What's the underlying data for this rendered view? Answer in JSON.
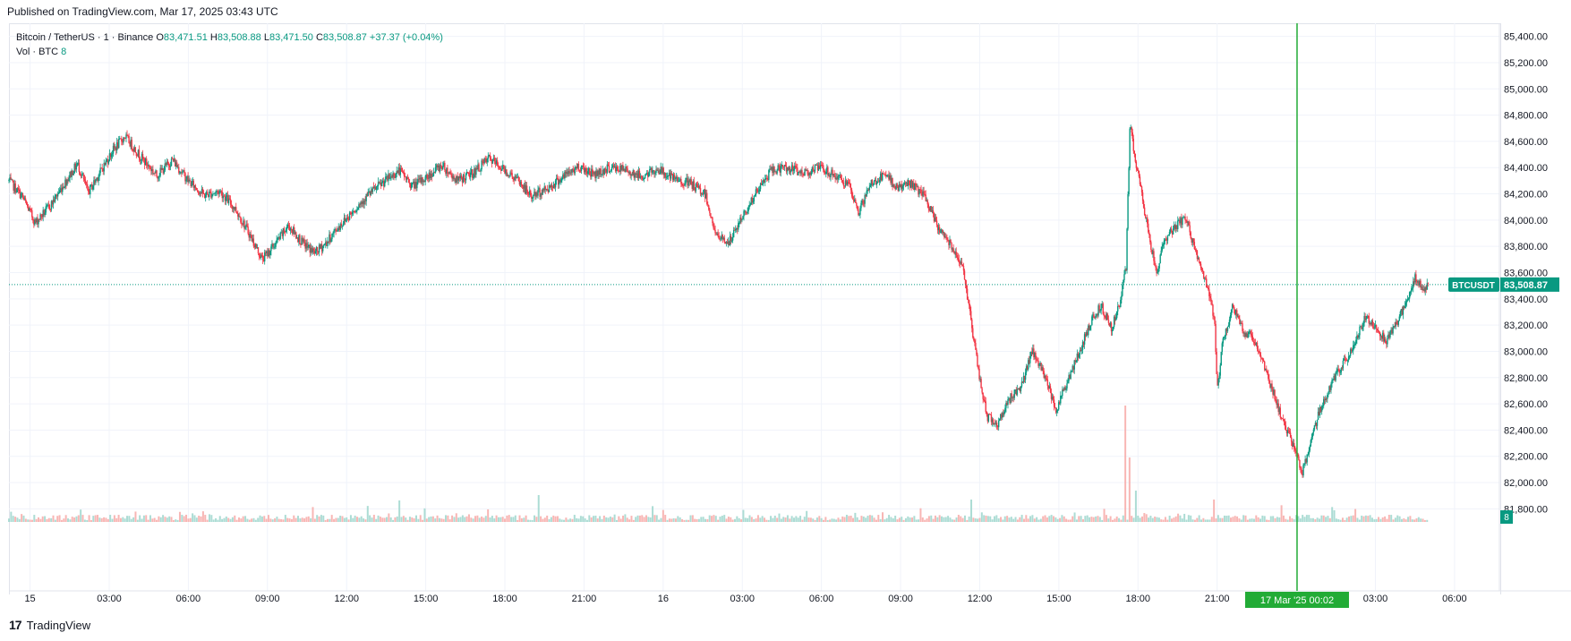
{
  "published": "Published on TradingView.com, Mar 17, 2025 03:43 UTC",
  "legend": {
    "symbol": "Bitcoin / TetherUS · 1 · Binance",
    "o_label": "O",
    "o": "83,471.51",
    "h_label": "H",
    "h": "83,508.88",
    "l_label": "L",
    "l": "83,471.50",
    "c_label": "C",
    "c": "83,508.87",
    "change": "+37.37 (+0.04%)",
    "vol_label": "Vol · BTC",
    "vol_value": "8"
  },
  "footer": {
    "brand": "TradingView",
    "mark": "17"
  },
  "colors": {
    "up": "#089981",
    "down": "#f23645",
    "cursor": "#22ab36",
    "grid": "#f0f3fa"
  },
  "chart_data": {
    "type": "line",
    "symbol": "BTCUSDT",
    "last_price": 83508.87,
    "last_price_label": "83,508.87",
    "symbol_label": "BTCUSDT",
    "volume_label": "8",
    "cursor_label": "17 Mar '25   00:02",
    "yticks": [
      81800,
      82000,
      82200,
      82400,
      82600,
      82800,
      83000,
      83200,
      83400,
      83600,
      83800,
      84000,
      84200,
      84400,
      84600,
      84800,
      85000,
      85200,
      85400
    ],
    "ytick_labels": [
      "81,800.00",
      "82,000.00",
      "82,200.00",
      "82,400.00",
      "82,600.00",
      "82,800.00",
      "83,000.00",
      "83,200.00",
      "83,400.00",
      "83,600.00",
      "83,800.00",
      "84,000.00",
      "84,200.00",
      "84,400.00",
      "84,600.00",
      "84,800.00",
      "85,000.00",
      "85,200.00",
      "85,400.00"
    ],
    "ylim": [
      81700,
      85500
    ],
    "xticks": [
      {
        "label": "15",
        "hours": 0
      },
      {
        "label": "03:00",
        "hours": 3
      },
      {
        "label": "06:00",
        "hours": 6
      },
      {
        "label": "09:00",
        "hours": 9
      },
      {
        "label": "12:00",
        "hours": 12
      },
      {
        "label": "15:00",
        "hours": 15
      },
      {
        "label": "18:00",
        "hours": 18
      },
      {
        "label": "21:00",
        "hours": 21
      },
      {
        "label": "16",
        "hours": 24
      },
      {
        "label": "03:00",
        "hours": 27
      },
      {
        "label": "06:00",
        "hours": 30
      },
      {
        "label": "09:00",
        "hours": 33
      },
      {
        "label": "12:00",
        "hours": 36
      },
      {
        "label": "15:00",
        "hours": 39
      },
      {
        "label": "18:00",
        "hours": 42
      },
      {
        "label": "21:00",
        "hours": 45
      },
      {
        "label": "03:00",
        "hours": 51
      },
      {
        "label": "06:00",
        "hours": 54
      }
    ],
    "xlim_hours": [
      -0.8,
      55.7
    ],
    "cursor_hours": 48.03,
    "price_series": [
      [
        -0.8,
        84300
      ],
      [
        -0.3,
        84180
      ],
      [
        0.2,
        83980
      ],
      [
        0.8,
        84120
      ],
      [
        1.3,
        84280
      ],
      [
        1.8,
        84430
      ],
      [
        2.2,
        84210
      ],
      [
        2.7,
        84380
      ],
      [
        3.1,
        84520
      ],
      [
        3.6,
        84640
      ],
      [
        4.2,
        84480
      ],
      [
        4.8,
        84340
      ],
      [
        5.4,
        84460
      ],
      [
        6.0,
        84300
      ],
      [
        6.6,
        84190
      ],
      [
        7.2,
        84220
      ],
      [
        7.8,
        84080
      ],
      [
        8.3,
        83900
      ],
      [
        8.8,
        83700
      ],
      [
        9.3,
        83820
      ],
      [
        9.8,
        83960
      ],
      [
        10.3,
        83830
      ],
      [
        10.8,
        83750
      ],
      [
        11.2,
        83820
      ],
      [
        11.7,
        83950
      ],
      [
        12.2,
        84060
      ],
      [
        12.8,
        84190
      ],
      [
        13.4,
        84290
      ],
      [
        14.0,
        84380
      ],
      [
        14.5,
        84260
      ],
      [
        15.0,
        84320
      ],
      [
        15.6,
        84420
      ],
      [
        16.2,
        84300
      ],
      [
        16.8,
        84360
      ],
      [
        17.4,
        84470
      ],
      [
        18.0,
        84380
      ],
      [
        18.5,
        84300
      ],
      [
        19.0,
        84180
      ],
      [
        19.6,
        84240
      ],
      [
        20.2,
        84330
      ],
      [
        20.8,
        84410
      ],
      [
        21.4,
        84350
      ],
      [
        22.0,
        84400
      ],
      [
        22.6,
        84380
      ],
      [
        23.2,
        84330
      ],
      [
        23.8,
        84390
      ],
      [
        24.4,
        84310
      ],
      [
        25.0,
        84280
      ],
      [
        25.6,
        84200
      ],
      [
        26.0,
        83880
      ],
      [
        26.5,
        83830
      ],
      [
        27.1,
        84060
      ],
      [
        27.6,
        84230
      ],
      [
        28.1,
        84380
      ],
      [
        28.7,
        84400
      ],
      [
        29.3,
        84360
      ],
      [
        29.9,
        84400
      ],
      [
        30.5,
        84340
      ],
      [
        31.0,
        84270
      ],
      [
        31.4,
        84060
      ],
      [
        31.9,
        84280
      ],
      [
        32.4,
        84340
      ],
      [
        32.9,
        84250
      ],
      [
        33.4,
        84280
      ],
      [
        33.9,
        84180
      ],
      [
        34.4,
        83950
      ],
      [
        34.9,
        83820
      ],
      [
        35.3,
        83680
      ],
      [
        35.6,
        83350
      ],
      [
        35.8,
        83050
      ],
      [
        36.0,
        82780
      ],
      [
        36.3,
        82500
      ],
      [
        36.7,
        82450
      ],
      [
        37.1,
        82630
      ],
      [
        37.6,
        82750
      ],
      [
        38.0,
        83000
      ],
      [
        38.5,
        82800
      ],
      [
        38.9,
        82560
      ],
      [
        39.3,
        82760
      ],
      [
        39.8,
        83000
      ],
      [
        40.2,
        83220
      ],
      [
        40.6,
        83350
      ],
      [
        41.0,
        83180
      ],
      [
        41.3,
        83350
      ],
      [
        41.55,
        83650
      ],
      [
        41.7,
        84750
      ],
      [
        41.85,
        84500
      ],
      [
        42.1,
        84250
      ],
      [
        42.4,
        83900
      ],
      [
        42.7,
        83600
      ],
      [
        43.0,
        83850
      ],
      [
        43.4,
        83950
      ],
      [
        43.8,
        84020
      ],
      [
        44.2,
        83750
      ],
      [
        44.6,
        83500
      ],
      [
        44.9,
        83250
      ],
      [
        45.0,
        82700
      ],
      [
        45.2,
        83050
      ],
      [
        45.6,
        83350
      ],
      [
        46.0,
        83150
      ],
      [
        46.4,
        83100
      ],
      [
        46.8,
        82880
      ],
      [
        47.2,
        82650
      ],
      [
        47.6,
        82400
      ],
      [
        48.0,
        82250
      ],
      [
        48.2,
        82050
      ],
      [
        48.5,
        82280
      ],
      [
        48.9,
        82560
      ],
      [
        49.4,
        82780
      ],
      [
        49.9,
        82940
      ],
      [
        50.3,
        83100
      ],
      [
        50.6,
        83260
      ],
      [
        51.0,
        83200
      ],
      [
        51.4,
        83080
      ],
      [
        51.8,
        83220
      ],
      [
        52.2,
        83380
      ],
      [
        52.5,
        83560
      ],
      [
        52.8,
        83470
      ],
      [
        53.0,
        83508
      ]
    ],
    "volume_spikes": [
      [
        41.5,
        130
      ],
      [
        41.7,
        72
      ],
      [
        41.9,
        35
      ],
      [
        35.7,
        25
      ],
      [
        44.9,
        25
      ],
      [
        19.3,
        30
      ],
      [
        14.0,
        24
      ]
    ]
  }
}
